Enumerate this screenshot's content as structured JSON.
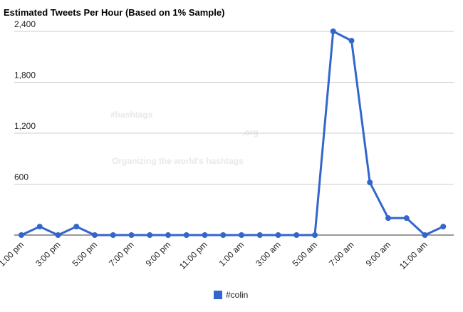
{
  "chart_data": {
    "type": "line",
    "title": "Estimated Tweets Per Hour (Based on 1% Sample)",
    "watermark": {
      "logo": "#hashtags",
      "domain": ".org",
      "tagline": "Organizing the world's hashtags"
    },
    "categories": [
      "1:00 pm",
      null,
      "3:00 pm",
      null,
      "5:00 pm",
      null,
      "7:00 pm",
      null,
      "9:00 pm",
      null,
      "11:00 pm",
      null,
      "1:00 am",
      null,
      "3:00 am",
      null,
      "5:00 am",
      null,
      "7:00 am",
      null,
      "9:00 am",
      null,
      "11:00 am",
      null
    ],
    "series": [
      {
        "name": "#colin",
        "color": "#3366cc",
        "values": [
          0,
          100,
          0,
          100,
          0,
          0,
          0,
          0,
          0,
          0,
          0,
          0,
          0,
          0,
          0,
          0,
          0,
          2400,
          2290,
          620,
          200,
          200,
          0,
          100
        ]
      }
    ],
    "ylim": [
      0,
      2400
    ],
    "yticks": [
      {
        "value": 600,
        "label": "600"
      },
      {
        "value": 1200,
        "label": "1,200"
      },
      {
        "value": 1800,
        "label": "1,800"
      },
      {
        "value": 2400,
        "label": "2,400"
      }
    ],
    "grid": true,
    "legend": "bottom"
  }
}
